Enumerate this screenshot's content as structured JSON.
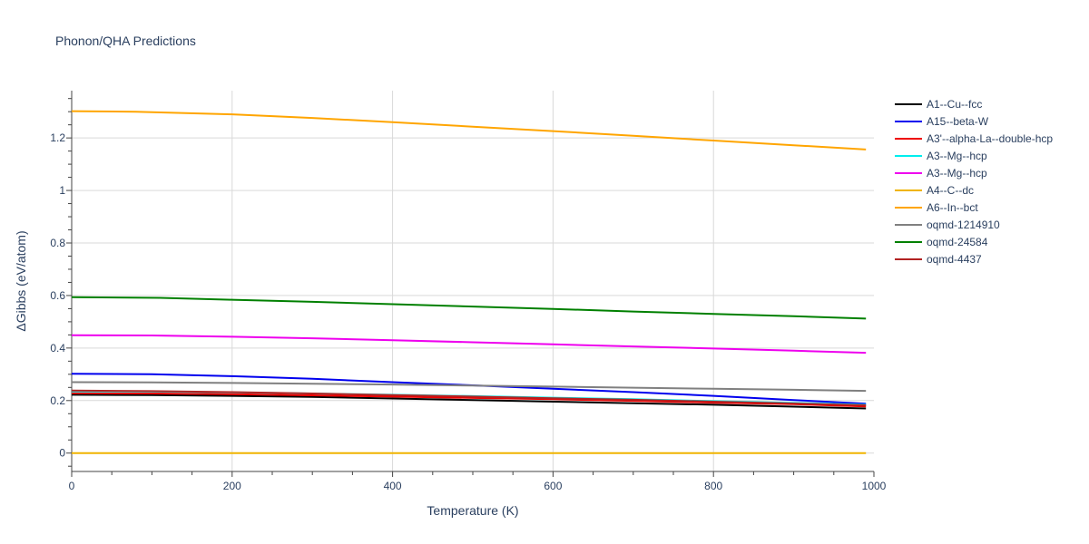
{
  "chart_data": {
    "type": "line",
    "title": "Phonon/QHA Predictions",
    "xlabel": "Temperature (K)",
    "ylabel": "ΔGibbs (eV/atom)",
    "xlim": [
      0,
      1000
    ],
    "ylim": [
      -0.07,
      1.38
    ],
    "xticks": [
      0,
      200,
      400,
      600,
      800,
      1000
    ],
    "yticks": [
      0,
      0.2,
      0.4,
      0.6,
      0.8,
      1,
      1.2
    ],
    "xtick_labels": [
      "0",
      "200",
      "400",
      "600",
      "800",
      "1000"
    ],
    "ytick_labels": [
      "0",
      "0.2",
      "0.4",
      "0.6",
      "0.8",
      "1",
      "1.2"
    ],
    "grid": true,
    "legend_position": "right",
    "series": [
      {
        "name": "A1--Cu--fcc",
        "color": "#000000",
        "x": [
          0,
          100,
          200,
          300,
          400,
          500,
          600,
          700,
          800,
          900,
          990
        ],
        "y": [
          0.222,
          0.221,
          0.218,
          0.214,
          0.208,
          0.202,
          0.196,
          0.19,
          0.184,
          0.177,
          0.17
        ]
      },
      {
        "name": "A15--beta-W",
        "color": "#0000ee",
        "x": [
          0,
          100,
          200,
          300,
          400,
          500,
          600,
          700,
          800,
          900,
          990
        ],
        "y": [
          0.302,
          0.3,
          0.293,
          0.283,
          0.27,
          0.258,
          0.245,
          0.232,
          0.218,
          0.202,
          0.188
        ]
      },
      {
        "name": "A3'--alpha-La--double-hcp",
        "color": "#ee0000",
        "x": [
          0,
          100,
          200,
          300,
          400,
          500,
          600,
          700,
          800,
          900,
          990
        ],
        "y": [
          0.228,
          0.227,
          0.224,
          0.22,
          0.215,
          0.21,
          0.205,
          0.199,
          0.192,
          0.186,
          0.178
        ]
      },
      {
        "name": "A3--Mg--hcp",
        "color": "#00eeee",
        "x": [
          0,
          100,
          200,
          300,
          400,
          500,
          600,
          700,
          800,
          900,
          990
        ],
        "y": [
          0.235,
          0.234,
          0.231,
          0.227,
          0.222,
          0.217,
          0.211,
          0.205,
          0.198,
          0.191,
          0.184
        ]
      },
      {
        "name": "A3--Mg--hcp",
        "color": "#ee00ee",
        "x": [
          0,
          100,
          200,
          300,
          400,
          500,
          600,
          700,
          800,
          900,
          990
        ],
        "y": [
          0.449,
          0.448,
          0.443,
          0.437,
          0.43,
          0.422,
          0.414,
          0.406,
          0.398,
          0.39,
          0.382
        ]
      },
      {
        "name": "A4--C--dc",
        "color": "#f0b400",
        "x": [
          0,
          990
        ],
        "y": [
          0,
          0
        ]
      },
      {
        "name": "A6--In--bct",
        "color": "#ffa500",
        "x": [
          0,
          80,
          200,
          300,
          400,
          500,
          600,
          700,
          800,
          900,
          990
        ],
        "y": [
          1.302,
          1.3,
          1.29,
          1.276,
          1.26,
          1.243,
          1.226,
          1.208,
          1.19,
          1.172,
          1.156
        ]
      },
      {
        "name": "oqmd-1214910",
        "color": "#808080",
        "x": [
          0,
          100,
          200,
          300,
          400,
          500,
          600,
          700,
          800,
          900,
          990
        ],
        "y": [
          0.27,
          0.269,
          0.267,
          0.264,
          0.261,
          0.257,
          0.253,
          0.249,
          0.245,
          0.241,
          0.237
        ]
      },
      {
        "name": "oqmd-24584",
        "color": "#008000",
        "x": [
          0,
          110,
          200,
          300,
          400,
          500,
          600,
          700,
          800,
          900,
          990
        ],
        "y": [
          0.594,
          0.591,
          0.584,
          0.576,
          0.567,
          0.558,
          0.549,
          0.539,
          0.53,
          0.521,
          0.512
        ]
      },
      {
        "name": "oqmd-4437",
        "color": "#b22222",
        "x": [
          0,
          100,
          200,
          300,
          400,
          500,
          600,
          700,
          800,
          900,
          990
        ],
        "y": [
          0.238,
          0.236,
          0.232,
          0.227,
          0.221,
          0.215,
          0.209,
          0.203,
          0.196,
          0.189,
          0.182
        ]
      }
    ]
  }
}
